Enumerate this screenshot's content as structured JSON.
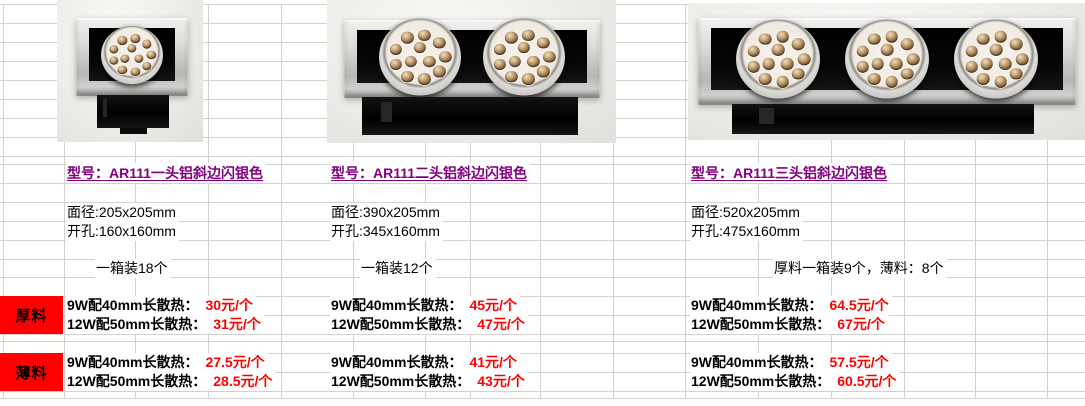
{
  "colors": {
    "title": "#80007F",
    "price": "#FF0000",
    "labelBg": "#FF0000",
    "grid": "#D4D2CF"
  },
  "materials": {
    "thick_label": "厚料",
    "thin_label": "薄料"
  },
  "price_specs": {
    "w9": "9W配40mm长散热：",
    "w12": "12W配50mm长散热："
  },
  "products": [
    {
      "model_title": "型号：AR111一头铝斜边闪银色",
      "face_size": "面径:205x205mm",
      "cutout": "开孔:160x160mm",
      "packing": "一箱装18个",
      "heads": 1,
      "prices": {
        "thick_9w": "30元/个",
        "thick_12w": "31元/个",
        "thin_9w": "27.5元/个",
        "thin_12w": "28.5元/个"
      }
    },
    {
      "model_title": "型号：AR111二头铝斜边闪银色",
      "face_size": "面径:390x205mm",
      "cutout": "开孔:345x160mm",
      "packing": "一箱装12个",
      "heads": 2,
      "prices": {
        "thick_9w": "45元/个",
        "thick_12w": "47元/个",
        "thin_9w": "41元/个",
        "thin_12w": "43元/个"
      }
    },
    {
      "model_title": "型号：AR111三头铝斜边闪银色",
      "face_size": "面径:520x205mm",
      "cutout": "开孔:475x160mm",
      "packing": "厚料一箱装9个，薄料：8个",
      "heads": 3,
      "prices": {
        "thick_9w": "64.5元/个",
        "thick_12w": "67元/个",
        "thin_9w": "57.5元/个",
        "thin_12w": "60.5元/个"
      }
    }
  ]
}
